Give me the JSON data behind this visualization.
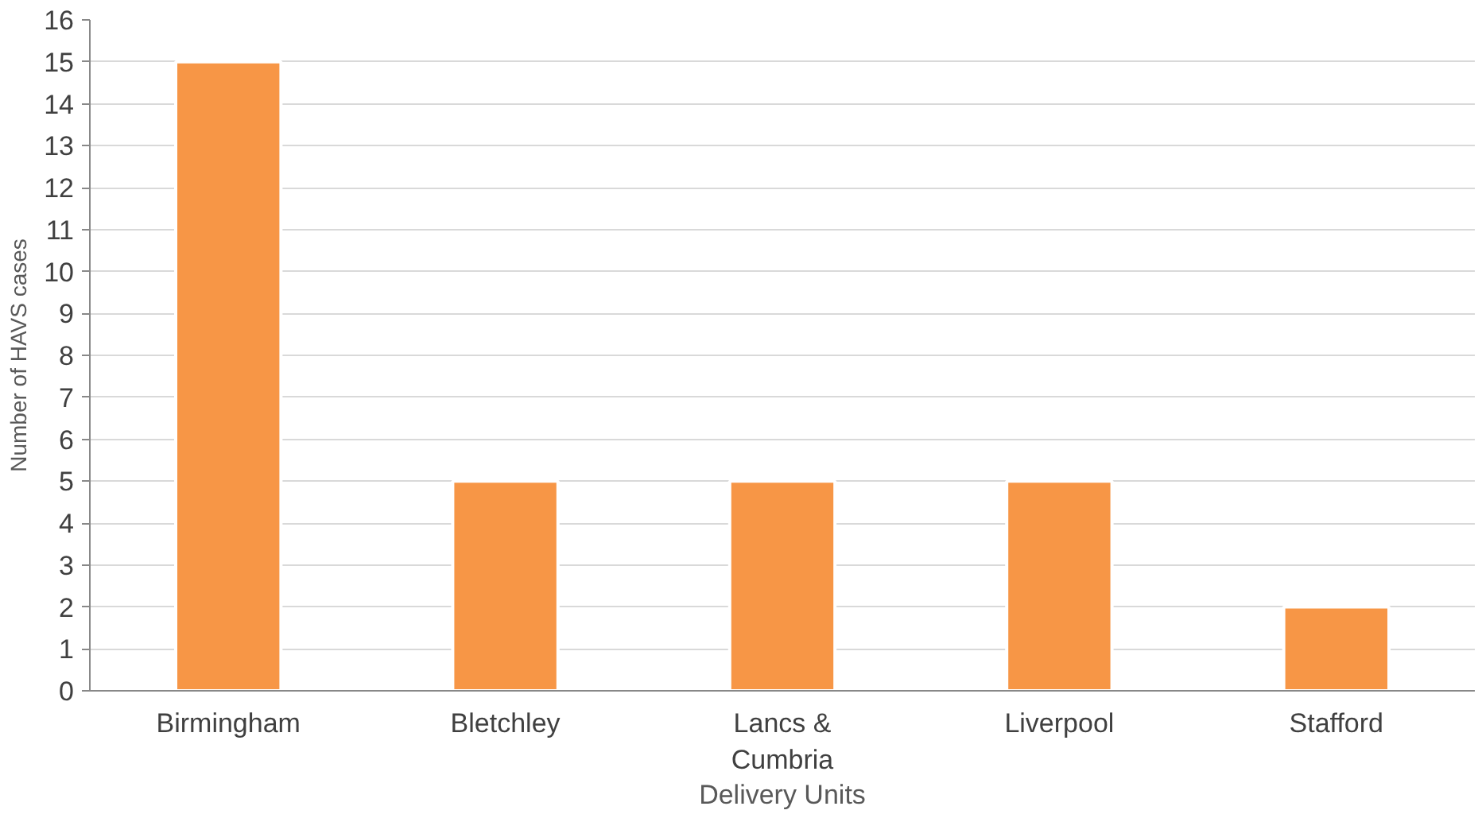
{
  "chart_data": {
    "type": "bar",
    "categories": [
      "Birmingham",
      "Bletchley",
      "Lancs & Cumbria",
      "Liverpool",
      "Stafford"
    ],
    "values": [
      15,
      5,
      5,
      5,
      2
    ],
    "color": "#f79646",
    "xlabel": "Delivery Units",
    "ylabel": "Number of HAVS cases",
    "ylim": [
      0,
      16
    ],
    "yticks": [
      0,
      1,
      2,
      3,
      4,
      5,
      6,
      7,
      8,
      9,
      10,
      11,
      12,
      13,
      14,
      15,
      16
    ],
    "grid": "y"
  }
}
